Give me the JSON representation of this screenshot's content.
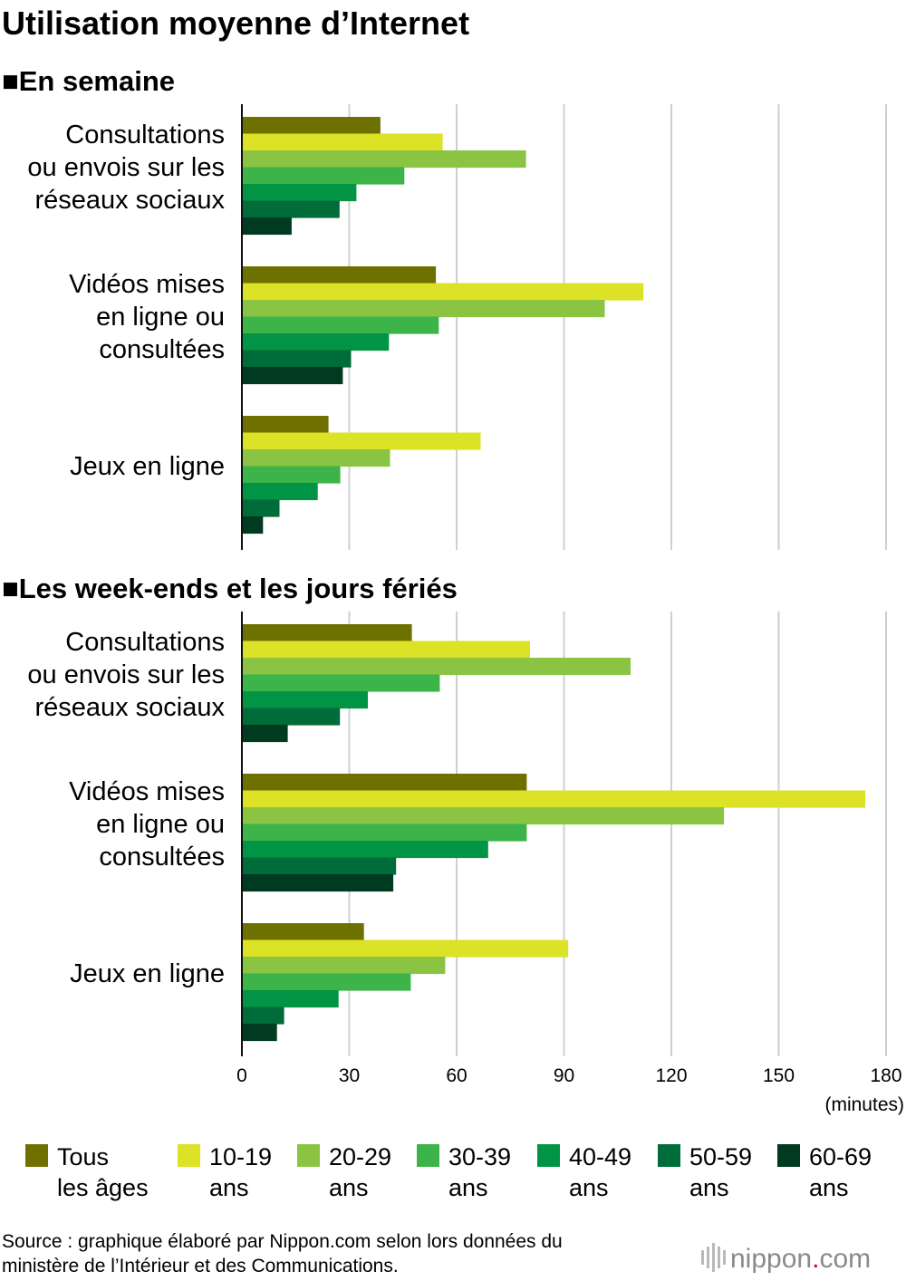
{
  "title": "Utilisation moyenne d’Internet",
  "source_line1": "Source : graphique élaboré par Nippon.com selon lors données du",
  "source_line2": "ministère de l’Intérieur et des Communications.",
  "brand": {
    "name": "nippon",
    "dot": ".",
    "tld": "com"
  },
  "unit_label": "(minutes)",
  "series": [
    {
      "legend_line1": "Tous",
      "legend_line2": "les âges",
      "color": "#6e7100"
    },
    {
      "legend_line1": "10-19",
      "legend_line2": "ans",
      "color": "#dce225"
    },
    {
      "legend_line1": "20-29",
      "legend_line2": "ans",
      "color": "#8bc443"
    },
    {
      "legend_line1": "30-39",
      "legend_line2": "ans",
      "color": "#3db449"
    },
    {
      "legend_line1": "40-49",
      "legend_line2": "ans",
      "color": "#009444"
    },
    {
      "legend_line1": "50-59",
      "legend_line2": "ans",
      "color": "#006c39"
    },
    {
      "legend_line1": "60-69",
      "legend_line2": "ans",
      "color": "#003a20"
    }
  ],
  "chart_data": [
    {
      "type": "bar",
      "orientation": "horizontal",
      "title": "■En semaine",
      "categories": [
        [
          "Consultations",
          "ou envois sur les",
          "réseaux sociaux"
        ],
        [
          "Vidéos mises",
          "en ligne ou",
          "consultées"
        ],
        [
          "Jeux en ligne"
        ]
      ],
      "xlim": [
        0,
        180
      ],
      "values": [
        [
          38.7,
          56.1,
          79.4,
          45.4,
          32.0,
          27.3,
          13.9
        ],
        [
          54.2,
          112.2,
          101.4,
          55.0,
          41.1,
          30.5,
          28.2
        ],
        [
          24.2,
          66.7,
          41.4,
          27.5,
          21.2,
          10.5,
          5.9
        ]
      ],
      "grid": true
    },
    {
      "type": "bar",
      "orientation": "horizontal",
      "title": "■Les week-ends et les jours fériés",
      "categories": [
        [
          "Consultations",
          "ou envois sur les",
          "réseaux sociaux"
        ],
        [
          "Vidéos mises",
          "en ligne ou",
          "consultées"
        ],
        [
          "Jeux en ligne"
        ]
      ],
      "xlim": [
        0,
        180
      ],
      "xticks": [
        0,
        30,
        60,
        90,
        120,
        150,
        180
      ],
      "xlabel": "(minutes)",
      "values": [
        [
          47.5,
          80.5,
          108.6,
          55.3,
          35.2,
          27.4,
          12.8
        ],
        [
          79.6,
          174.2,
          134.7,
          79.6,
          68.8,
          43.1,
          42.3
        ],
        [
          34.1,
          91.2,
          56.8,
          47.2,
          27.0,
          11.8,
          9.8
        ]
      ],
      "grid": true
    }
  ]
}
